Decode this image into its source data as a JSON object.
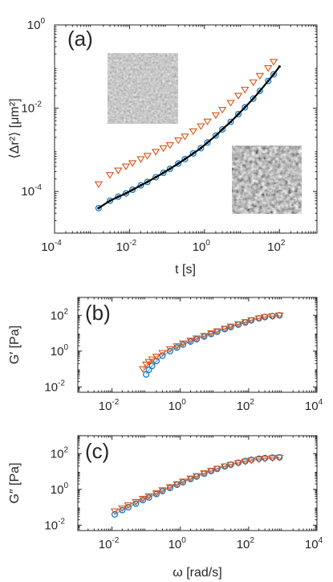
{
  "colors": {
    "blue": "#0072BD",
    "orange": "#D95319",
    "black": "#000000",
    "axis": "#262626"
  },
  "chart_data": [
    {
      "type": "scatter",
      "panel": "(a)",
      "xlabel": "t [s]",
      "ylabel": "⟨Δr²⟩ [μm²]",
      "xscale": "log",
      "yscale": "log",
      "xlim": [
        0.0001,
        1000
      ],
      "ylim": [
        1e-05,
        1
      ],
      "xticks": [
        {
          "value": 0.0001,
          "base": "10",
          "exp": "-4"
        },
        {
          "value": 0.01,
          "base": "10",
          "exp": "-2"
        },
        {
          "value": 1,
          "base": "10",
          "exp": "0"
        },
        {
          "value": 100,
          "base": "10",
          "exp": "2"
        }
      ],
      "yticks": [
        {
          "value": 0.0001,
          "base": "10",
          "exp": "-4"
        },
        {
          "value": 0.01,
          "base": "10",
          "exp": "-2"
        },
        {
          "value": 1,
          "base": "10",
          "exp": "0"
        }
      ],
      "insets": [
        "grainy-image-top",
        "grainy-image-bottom"
      ],
      "series": [
        {
          "marker": "triangle-down",
          "color": "orange",
          "x": [
            0.0015,
            0.003,
            0.005,
            0.008,
            0.012,
            0.02,
            0.03,
            0.05,
            0.08,
            0.12,
            0.2,
            0.3,
            0.5,
            0.8,
            1.2,
            2,
            3,
            5,
            8,
            12,
            20,
            30,
            50,
            70
          ],
          "y": [
            0.00015,
            0.00025,
            0.00032,
            0.0004,
            0.00048,
            0.0006,
            0.00072,
            0.0009,
            0.0011,
            0.0013,
            0.0017,
            0.0021,
            0.0028,
            0.0037,
            0.0048,
            0.0068,
            0.0092,
            0.0135,
            0.02,
            0.028,
            0.042,
            0.06,
            0.092,
            0.13
          ]
        },
        {
          "marker": "circle",
          "color": "blue",
          "x": [
            0.0015,
            0.003,
            0.005,
            0.008,
            0.012,
            0.02,
            0.03,
            0.05,
            0.08,
            0.12,
            0.2,
            0.3,
            0.5,
            0.8,
            1.2,
            2,
            3,
            5,
            8,
            12,
            20,
            30,
            50,
            70
          ],
          "y": [
            4e-05,
            6e-05,
            7.5e-05,
            9e-05,
            0.00011,
            0.00014,
            0.00017,
            0.00022,
            0.00028,
            0.00035,
            0.00047,
            0.0006,
            0.00082,
            0.0011,
            0.0015,
            0.0022,
            0.0031,
            0.0047,
            0.0072,
            0.0105,
            0.017,
            0.026,
            0.045,
            0.065
          ]
        },
        {
          "marker": "dot",
          "color": "black",
          "x": [
            0.0015,
            0.003,
            0.005,
            0.008,
            0.012,
            0.02,
            0.03,
            0.05,
            0.08,
            0.12,
            0.2,
            0.3,
            0.5,
            0.8,
            1.2,
            2,
            3,
            5,
            8,
            12,
            20,
            30,
            50,
            70,
            100
          ],
          "y": [
            4e-05,
            6e-05,
            7.5e-05,
            9e-05,
            0.00011,
            0.00014,
            0.00017,
            0.00022,
            0.00028,
            0.00035,
            0.00047,
            0.0006,
            0.00082,
            0.0011,
            0.0015,
            0.0022,
            0.0031,
            0.0047,
            0.0072,
            0.0105,
            0.017,
            0.026,
            0.045,
            0.065,
            0.1
          ]
        }
      ]
    },
    {
      "type": "scatter",
      "panel": "(b)",
      "xlabel": "",
      "ylabel": "G′ [Pa]",
      "xscale": "log",
      "yscale": "log",
      "xlim": [
        0.001,
        10000
      ],
      "ylim": [
        0.005,
        1000
      ],
      "xticks": [
        {
          "value": 0.01,
          "base": "10",
          "exp": "-2"
        },
        {
          "value": 1,
          "base": "10",
          "exp": "0"
        },
        {
          "value": 100,
          "base": "10",
          "exp": "2"
        },
        {
          "value": 10000,
          "base": "10",
          "exp": "4"
        }
      ],
      "yticks": [
        {
          "value": 0.01,
          "base": "10",
          "exp": "-2"
        },
        {
          "value": 1,
          "base": "10",
          "exp": "0"
        },
        {
          "value": 100,
          "base": "10",
          "exp": "2"
        }
      ],
      "series": [
        {
          "marker": "circle",
          "color": "blue",
          "x": [
            0.1,
            0.12,
            0.15,
            0.2,
            0.3,
            0.5,
            0.8,
            1.2,
            2,
            3,
            5,
            8,
            12,
            20,
            30,
            50,
            80,
            120,
            200,
            300,
            500,
            800
          ],
          "y": [
            0.05,
            0.09,
            0.15,
            0.28,
            0.55,
            1.0,
            1.6,
            2.3,
            3.4,
            4.6,
            6.5,
            9,
            12,
            17,
            22,
            30,
            40,
            52,
            68,
            80,
            90,
            100
          ]
        },
        {
          "marker": "triangle-down",
          "color": "orange",
          "x": [
            0.08,
            0.1,
            0.12,
            0.15,
            0.2,
            0.3,
            0.5,
            0.8,
            1.2,
            2,
            3,
            5,
            8,
            12,
            20,
            30,
            50,
            80,
            120,
            200,
            300,
            500,
            800
          ],
          "y": [
            0.1,
            0.18,
            0.25,
            0.35,
            0.5,
            0.8,
            1.3,
            1.9,
            2.7,
            3.9,
            5.2,
            7.2,
            10,
            13,
            18,
            24,
            32,
            42,
            54,
            68,
            80,
            90,
            100
          ]
        }
      ]
    },
    {
      "type": "scatter",
      "panel": "(c)",
      "xlabel": "ω [rad/s]",
      "ylabel": "G″ [Pa]",
      "xscale": "log",
      "yscale": "log",
      "xlim": [
        0.001,
        10000
      ],
      "ylim": [
        0.005,
        1000
      ],
      "xticks": [
        {
          "value": 0.01,
          "base": "10",
          "exp": "-2"
        },
        {
          "value": 1,
          "base": "10",
          "exp": "0"
        },
        {
          "value": 100,
          "base": "10",
          "exp": "2"
        },
        {
          "value": 10000,
          "base": "10",
          "exp": "4"
        }
      ],
      "yticks": [
        {
          "value": 0.01,
          "base": "10",
          "exp": "-2"
        },
        {
          "value": 1,
          "base": "10",
          "exp": "0"
        },
        {
          "value": 100,
          "base": "10",
          "exp": "2"
        }
      ],
      "series": [
        {
          "marker": "circle",
          "color": "blue",
          "x": [
            0.012,
            0.02,
            0.03,
            0.05,
            0.08,
            0.12,
            0.2,
            0.3,
            0.5,
            0.8,
            1.2,
            2,
            3,
            5,
            8,
            12,
            20,
            30,
            50,
            80,
            120,
            200,
            300,
            500,
            800
          ],
          "y": [
            0.04,
            0.07,
            0.1,
            0.16,
            0.25,
            0.35,
            0.55,
            0.8,
            1.2,
            1.8,
            2.5,
            3.8,
            5.2,
            7.5,
            10.5,
            14,
            19,
            24,
            31,
            38,
            45,
            52,
            56,
            60,
            62
          ]
        },
        {
          "marker": "triangle-down",
          "color": "orange",
          "x": [
            0.012,
            0.02,
            0.03,
            0.05,
            0.08,
            0.12,
            0.2,
            0.3,
            0.5,
            0.8,
            1.2,
            2,
            3,
            5,
            8,
            12,
            20,
            30,
            50,
            80,
            120,
            200,
            300,
            500,
            800
          ],
          "y": [
            0.06,
            0.09,
            0.13,
            0.2,
            0.3,
            0.42,
            0.62,
            0.9,
            1.35,
            2,
            2.8,
            4.1,
            5.6,
            8,
            11,
            14.5,
            19.5,
            24,
            30,
            36,
            42,
            48,
            52,
            56,
            60
          ]
        }
      ]
    }
  ]
}
